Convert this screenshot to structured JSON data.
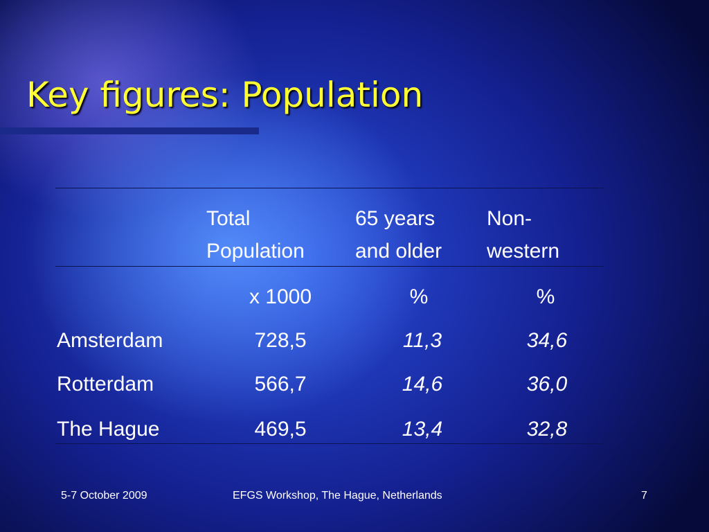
{
  "header": {
    "title": "Key figures: Population"
  },
  "table": {
    "columns": [
      [
        "Total",
        "Population"
      ],
      [
        "65 years",
        "and older"
      ],
      [
        "Non-",
        "western"
      ]
    ],
    "units": [
      "x 1000",
      "%",
      "%"
    ],
    "rows": [
      [
        "Amsterdam",
        "728,5",
        "11,3",
        "34,6"
      ],
      [
        "Rotterdam",
        "566,7",
        "14,6",
        "36,0"
      ],
      [
        "The Hague",
        "469,5",
        "13,4",
        "32,8"
      ]
    ]
  },
  "footer": {
    "date": "5-7 October 2009",
    "event": "EFGS Workshop, The Hague, Netherlands",
    "page": "7"
  }
}
